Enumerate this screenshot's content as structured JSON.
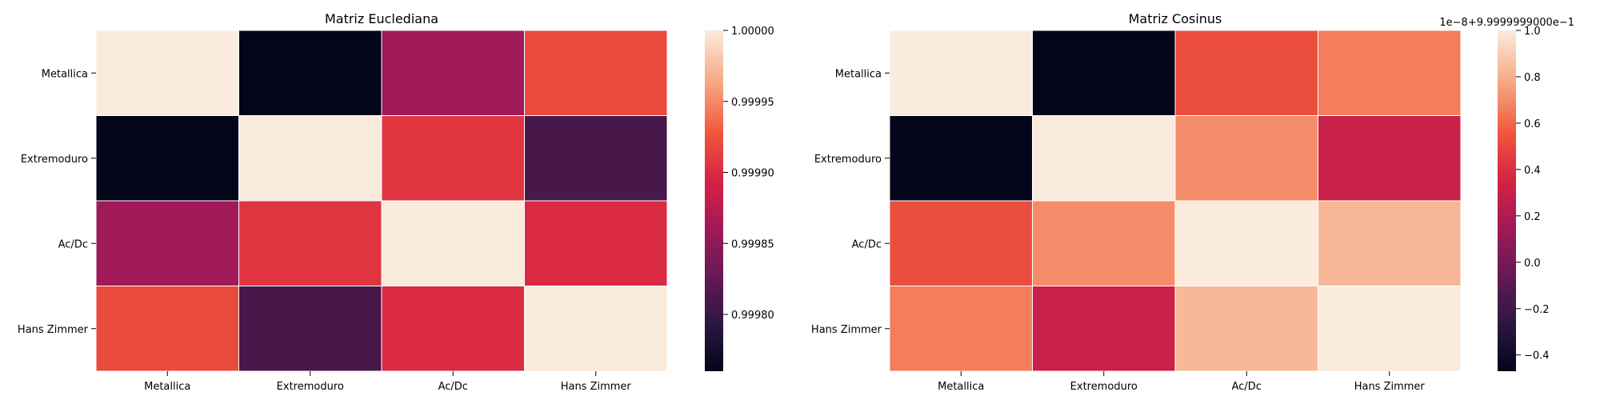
{
  "chart_data": [
    {
      "type": "heatmap",
      "title": "Matriz Euclediana",
      "rows": [
        "Metallica",
        "Extremoduro",
        "Ac/Dc",
        "Hans Zimmer"
      ],
      "cols": [
        "Metallica",
        "Extremoduro",
        "Ac/Dc",
        "Hans Zimmer"
      ],
      "values": [
        [
          1.0,
          0.99976,
          0.99986,
          0.99992
        ],
        [
          0.99976,
          1.0,
          0.999906,
          0.99981
        ],
        [
          0.99986,
          0.999906,
          1.0,
          0.9999
        ],
        [
          0.99992,
          0.99981,
          0.9999,
          1.0
        ]
      ],
      "vmin": 0.99976,
      "vmax": 1.0,
      "colorbar_ticks": [
        "1.00000",
        "0.99995",
        "0.99990",
        "0.99985",
        "0.99980"
      ],
      "colorbar_tick_values": [
        1.0,
        0.99995,
        0.9999,
        0.99985,
        0.9998
      ],
      "colorbar_offset": "",
      "colormap": "rocket"
    },
    {
      "type": "heatmap",
      "title": "Matriz Cosinus",
      "rows": [
        "Metallica",
        "Extremoduro",
        "Ac/Dc",
        "Hans Zimmer"
      ],
      "cols": [
        "Metallica",
        "Extremoduro",
        "Ac/Dc",
        "Hans Zimmer"
      ],
      "values": [
        [
          1.0,
          -0.47,
          0.52,
          0.66
        ],
        [
          -0.47,
          1.0,
          0.7,
          0.3
        ],
        [
          0.52,
          0.7,
          1.0,
          0.83
        ],
        [
          0.66,
          0.3,
          0.83,
          1.0
        ]
      ],
      "vmin": -0.47,
      "vmax": 1.0,
      "colorbar_ticks": [
        "1.0",
        "0.8",
        "0.6",
        "0.4",
        "0.2",
        "0.0",
        "−0.2",
        "−0.4"
      ],
      "colorbar_tick_values": [
        1.0,
        0.8,
        0.6,
        0.4,
        0.2,
        0.0,
        -0.2,
        -0.4
      ],
      "colorbar_offset": "1e−8+9.9999999000e−1",
      "colormap": "rocket"
    }
  ]
}
